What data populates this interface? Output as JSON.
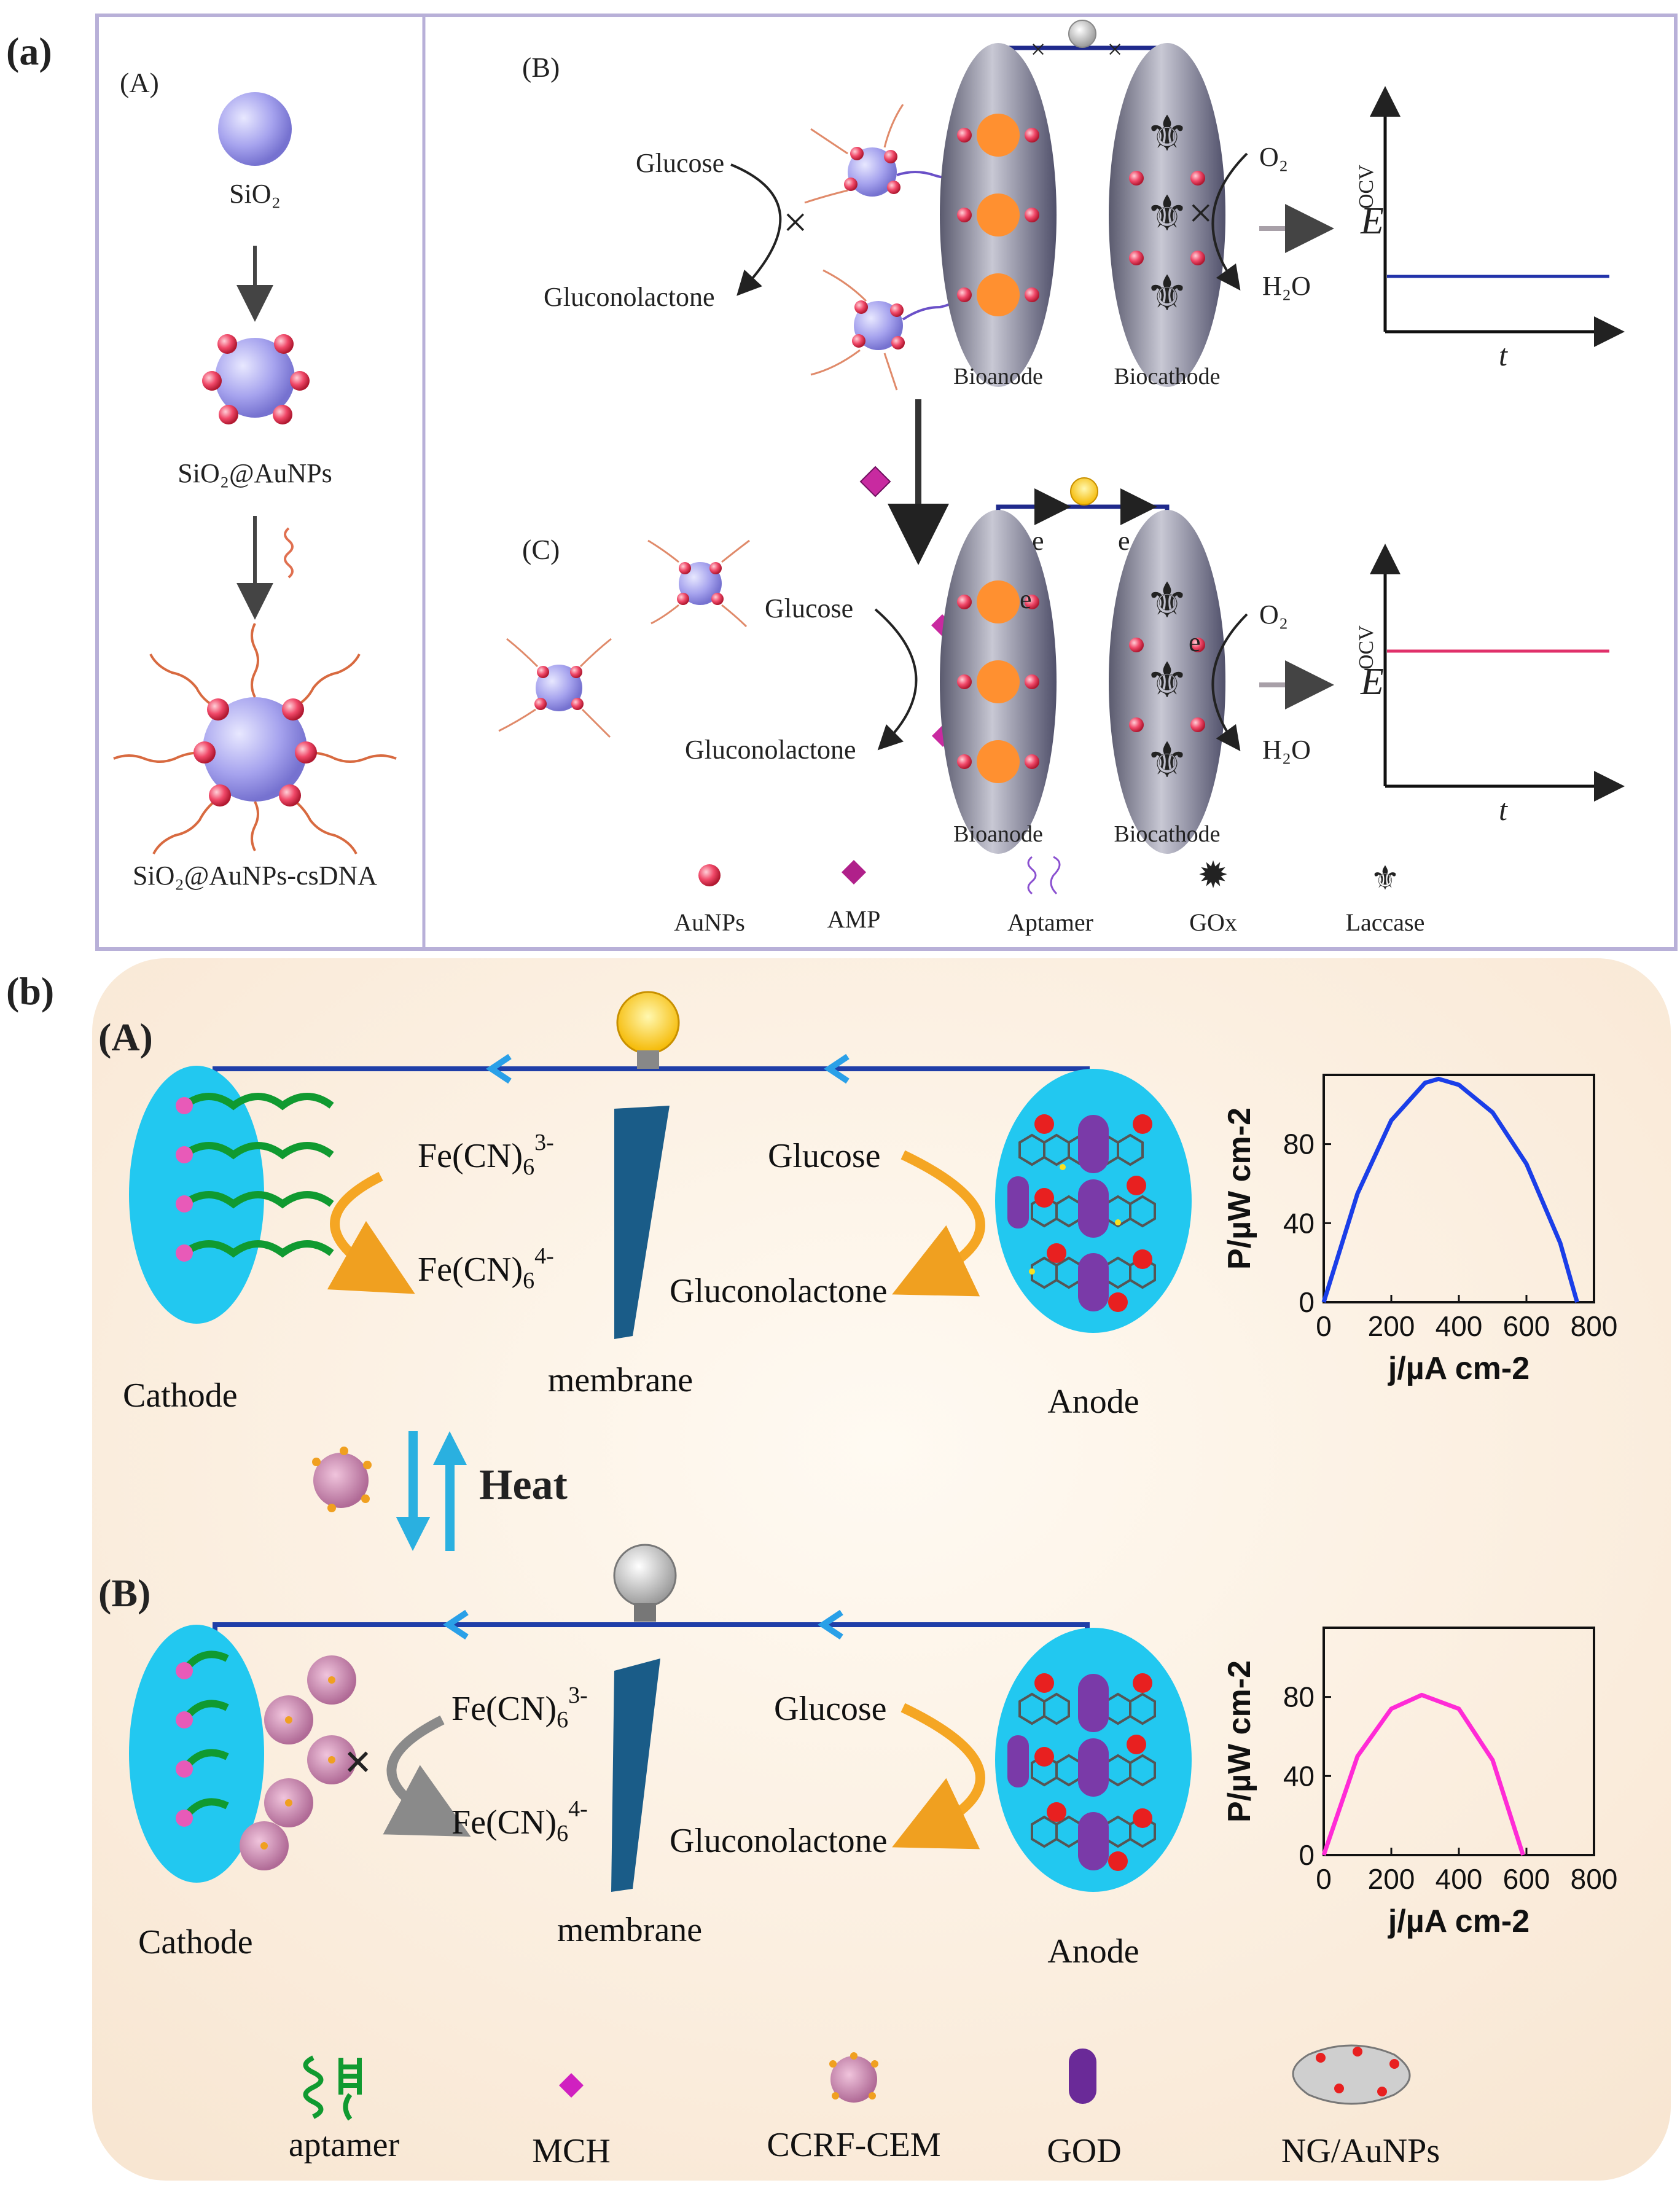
{
  "figure": {
    "part_a": {
      "label": "(a)",
      "panel_A": {
        "label": "(A)",
        "sio2": "SiO₂",
        "sio2_aunps": "SiO₂@AuNPs",
        "sio2_aunps_csdna": "SiO₂@AuNPs-csDNA"
      },
      "panel_B": {
        "label": "(B)",
        "glucose": "Glucose",
        "gluconolactone": "Gluconolactone",
        "o2": "O₂",
        "h2o": "H₂O",
        "bioanode": "Bioanode",
        "biocathode": "Biocathode",
        "y_axis": "E",
        "y_axis_sup": "OCV",
        "x_axis": "t"
      },
      "panel_C": {
        "label": "(C)",
        "glucose": "Glucose",
        "gluconolactone": "Gluconolactone",
        "o2": "O₂",
        "h2o": "H₂O",
        "bioanode": "Bioanode",
        "biocathode": "Biocathode",
        "electron": "e",
        "y_axis": "E",
        "y_axis_sup": "OCV",
        "x_axis": "t"
      },
      "legend": [
        "AuNPs",
        "AMP",
        "Aptamer",
        "GOx",
        "Laccase"
      ],
      "colors": {
        "panel_border": "#b8b0d8",
        "circuit": "#1f2a8c",
        "ocv_low": "#2233aa",
        "ocv_high": "#e0306a",
        "sphere": "#a9a6f0",
        "aunp": "#ee3a5a"
      }
    },
    "part_b": {
      "label": "(b)",
      "panel_A": {
        "label": "(A)",
        "fe3": "Fe(CN)",
        "fe3_sub": "6",
        "fe3_sup": "3-",
        "fe4": "Fe(CN)",
        "fe4_sub": "6",
        "fe4_sup": "4-",
        "glucose": "Glucose",
        "gluconolactone": "Gluconolactone",
        "membrane": "membrane",
        "cathode": "Cathode",
        "anode": "Anode"
      },
      "heat": "Heat",
      "panel_B": {
        "label": "(B)",
        "fe3": "Fe(CN)",
        "fe3_sub": "6",
        "fe3_sup": "3-",
        "fe4": "Fe(CN)",
        "fe4_sub": "6",
        "fe4_sup": "4-",
        "glucose": "Glucose",
        "gluconolactone": "Gluconolactone",
        "membrane": "membrane",
        "cathode": "Cathode",
        "anode": "Anode"
      },
      "legend": [
        "aptamer",
        "MCH",
        "CCRF-CEM",
        "GOD",
        "NG/AuNPs"
      ],
      "colors": {
        "circuit": "#1f3ea8",
        "electrode": "#22c8f0",
        "curve_A": "#1a3ee8",
        "curve_B": "#ff2bd6",
        "heat": "#e01818",
        "background": "#fdf3e6"
      }
    }
  },
  "chart_data": [
    {
      "type": "line",
      "title": "",
      "xlabel": "j/µA cm-2",
      "ylabel": "P/µW cm-2",
      "xlim": [
        0,
        800
      ],
      "ylim": [
        0,
        115
      ],
      "xticks": [
        "0",
        "200",
        "400",
        "600",
        "800"
      ],
      "yticks": [
        "0",
        "40",
        "80"
      ],
      "series": [
        {
          "name": "A",
          "x": [
            0,
            100,
            200,
            300,
            340,
            400,
            500,
            600,
            700,
            750
          ],
          "y": [
            0,
            55,
            92,
            111,
            113,
            110,
            96,
            70,
            30,
            0
          ]
        }
      ]
    },
    {
      "type": "line",
      "title": "",
      "xlabel": "j/µA cm-2",
      "ylabel": "P/µW cm-2",
      "xlim": [
        0,
        800
      ],
      "ylim": [
        0,
        115
      ],
      "xticks": [
        "0",
        "200",
        "400",
        "600",
        "800"
      ],
      "yticks": [
        "0",
        "40",
        "80"
      ],
      "series": [
        {
          "name": "B",
          "x": [
            0,
            100,
            200,
            290,
            400,
            500,
            590
          ],
          "y": [
            0,
            50,
            74,
            81,
            74,
            48,
            0
          ]
        }
      ]
    }
  ]
}
